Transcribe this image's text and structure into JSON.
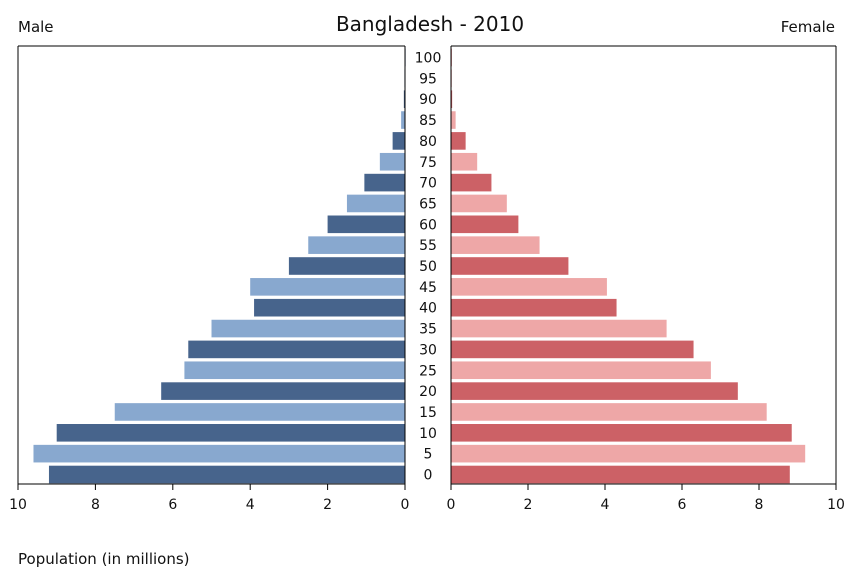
{
  "chart_data": {
    "type": "bar",
    "title": "Bangladesh - 2010",
    "left_label": "Male",
    "right_label": "Female",
    "xlabel": "Population (in millions)",
    "xlim": [
      0,
      10
    ],
    "x_ticks": [
      0,
      2,
      4,
      6,
      8,
      10
    ],
    "age_labels": [
      "0",
      "5",
      "10",
      "15",
      "20",
      "25",
      "30",
      "35",
      "40",
      "45",
      "50",
      "55",
      "60",
      "65",
      "70",
      "75",
      "80",
      "85",
      "90",
      "95",
      "100"
    ],
    "series": [
      {
        "name": "Male",
        "values": [
          9.2,
          9.6,
          9.0,
          7.5,
          6.3,
          5.7,
          5.6,
          5.0,
          3.9,
          4.0,
          3.0,
          2.5,
          2.0,
          1.5,
          1.05,
          0.65,
          0.32,
          0.1,
          0.03,
          0.015,
          0.005
        ],
        "colors": [
          "#47648c",
          "#88a8cf"
        ]
      },
      {
        "name": "Female",
        "values": [
          8.8,
          9.2,
          8.85,
          8.2,
          7.45,
          6.75,
          6.3,
          5.6,
          4.3,
          4.05,
          3.05,
          2.3,
          1.75,
          1.45,
          1.05,
          0.68,
          0.38,
          0.12,
          0.03,
          0.01,
          0.005
        ],
        "colors": [
          "#cc6166",
          "#eea7a7"
        ]
      }
    ],
    "grid": false
  }
}
